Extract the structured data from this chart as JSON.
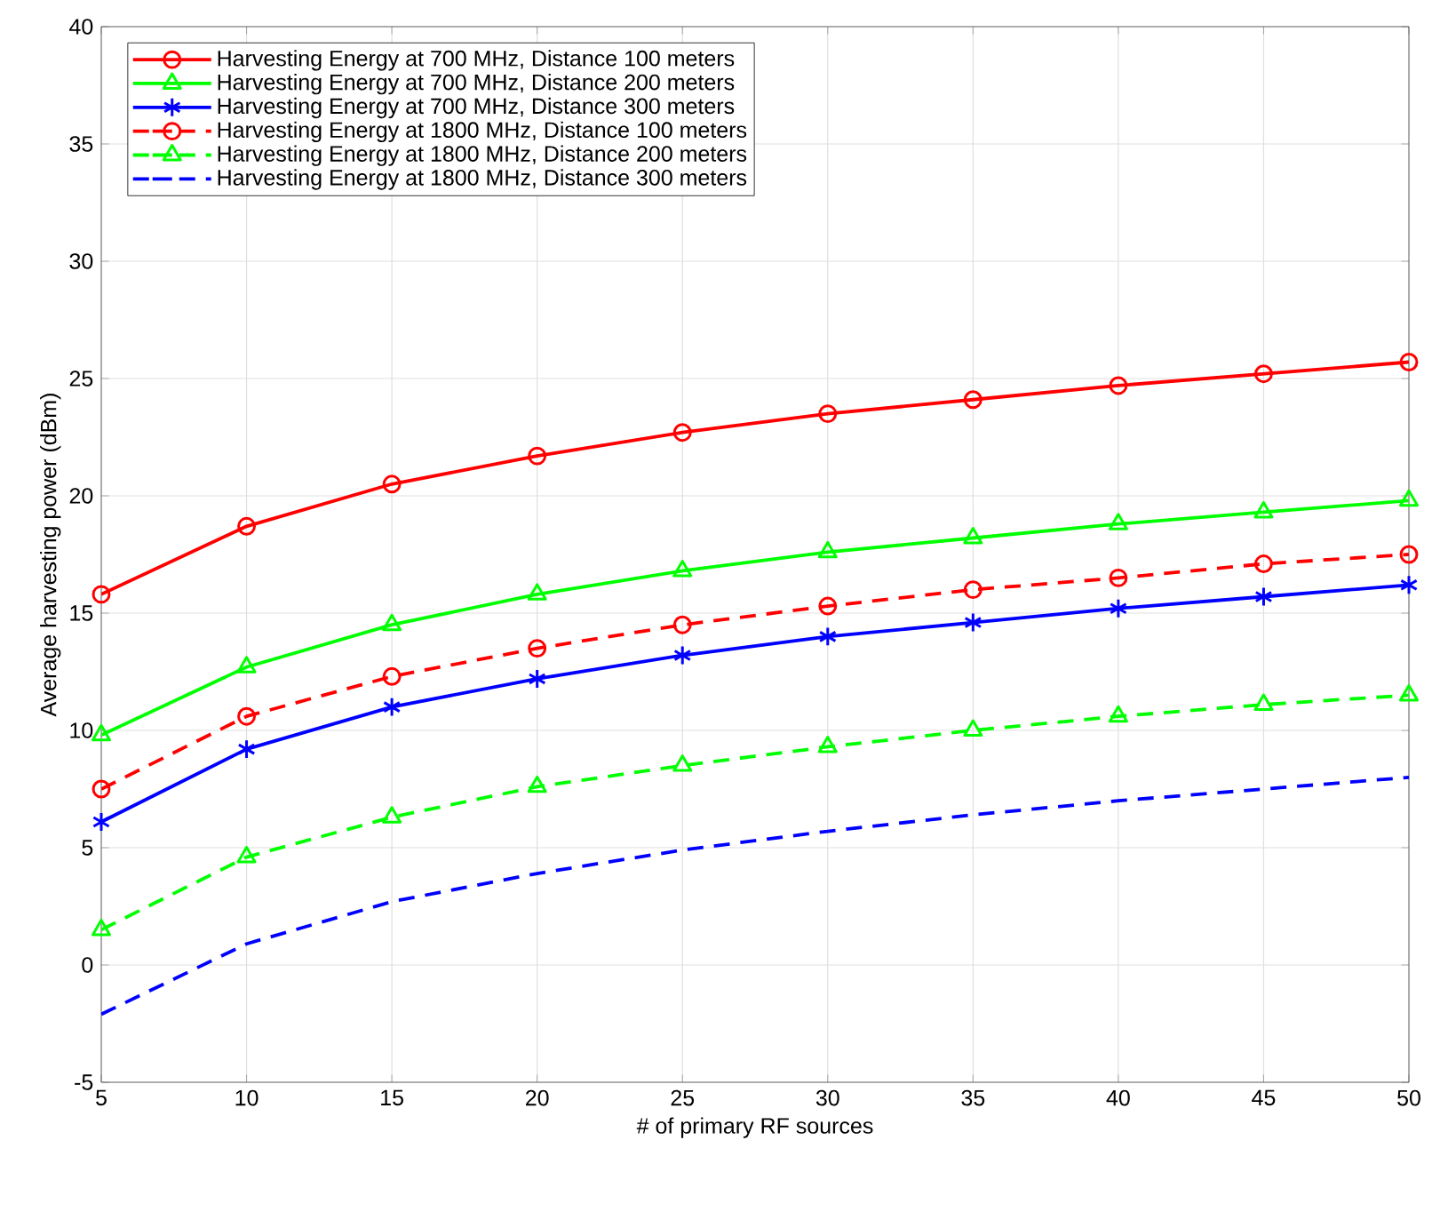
{
  "chart_data": {
    "type": "line",
    "xlabel": "# of primary RF sources",
    "ylabel": "Average harvesting power (dBm)",
    "x": [
      5,
      10,
      15,
      20,
      25,
      30,
      35,
      40,
      45,
      50
    ],
    "xlim": [
      5,
      50
    ],
    "xticks": [
      5,
      10,
      15,
      20,
      25,
      30,
      35,
      40,
      45,
      50
    ],
    "ylim": [
      -5,
      40
    ],
    "yticks": [
      -5,
      0,
      5,
      10,
      15,
      20,
      25,
      30,
      35,
      40
    ],
    "grid": true,
    "legend": "top left",
    "series": [
      {
        "name": "Harvesting Energy at 700 MHz, Distance 100 meters",
        "color": "#ff0000",
        "marker": "circle",
        "line_style": "solid",
        "values": [
          15.8,
          18.7,
          20.5,
          21.7,
          22.7,
          23.5,
          24.1,
          24.7,
          25.2,
          25.7
        ]
      },
      {
        "name": "Harvesting Energy at 700 MHz, Distance 200 meters",
        "color": "#00ff00",
        "marker": "triangle",
        "line_style": "solid",
        "values": [
          9.8,
          12.7,
          14.5,
          15.8,
          16.8,
          17.6,
          18.2,
          18.8,
          19.3,
          19.8
        ]
      },
      {
        "name": "Harvesting Energy at 700 MHz, Distance 300 meters",
        "color": "#0000ff",
        "marker": "cross",
        "line_style": "solid",
        "values": [
          6.1,
          9.2,
          11.0,
          12.2,
          13.2,
          14.0,
          14.6,
          15.2,
          15.7,
          16.2
        ]
      },
      {
        "name": "Harvesting Energy at 1800 MHz, Distance 100 meters",
        "color": "#ff0000",
        "marker": "circle",
        "line_style": "dashed",
        "values": [
          7.5,
          10.6,
          12.3,
          13.5,
          14.5,
          15.3,
          16.0,
          16.5,
          17.1,
          17.5
        ]
      },
      {
        "name": "Harvesting Energy at 1800 MHz, Distance 200 meters",
        "color": "#00ff00",
        "marker": "triangle",
        "line_style": "dashed",
        "values": [
          1.5,
          4.6,
          6.3,
          7.6,
          8.5,
          9.3,
          10.0,
          10.6,
          11.1,
          11.5
        ]
      },
      {
        "name": "Harvesting Energy at 1800 MHz, Distance 300 meters",
        "color": "#0000ff",
        "marker": "none",
        "line_style": "dashed",
        "values": [
          -2.1,
          0.9,
          2.7,
          3.9,
          4.9,
          5.7,
          6.4,
          7.0,
          7.5,
          8.0
        ]
      }
    ]
  }
}
